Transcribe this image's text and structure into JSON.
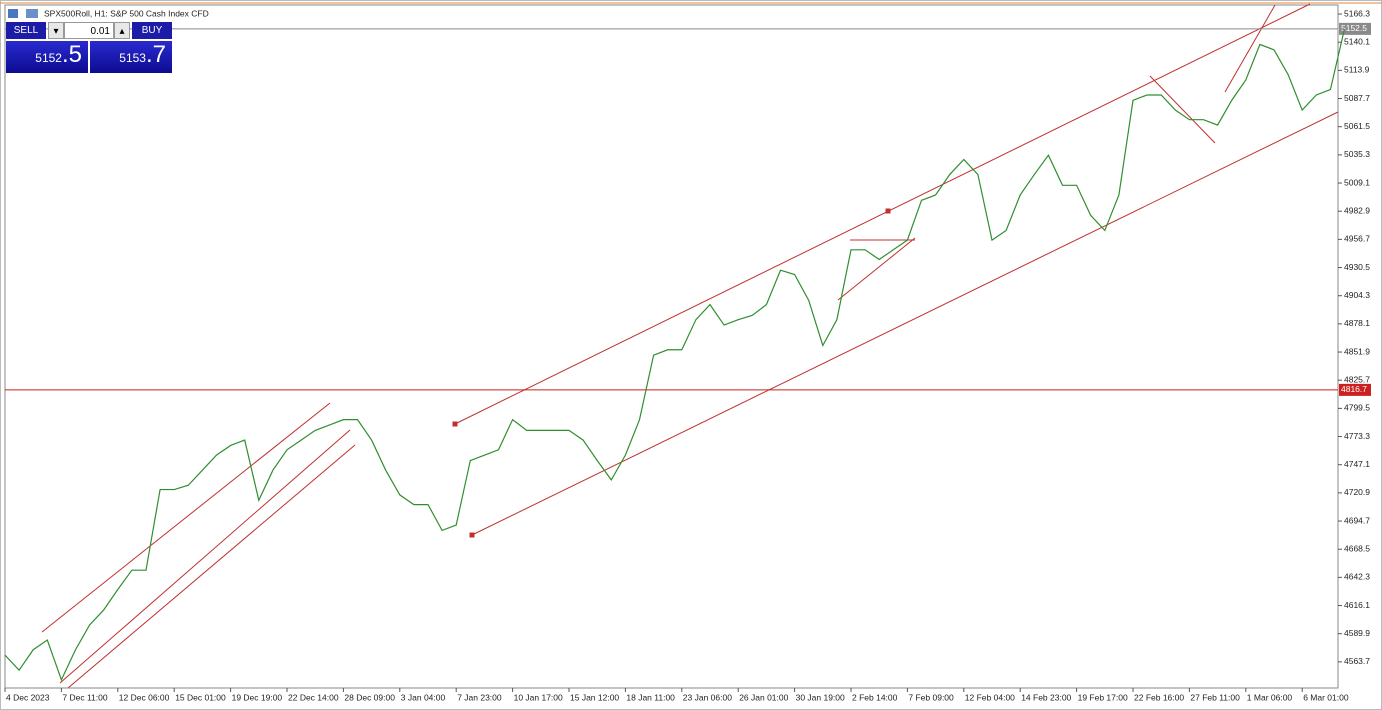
{
  "window_title": "SPX500Roll, H1:  S&P 500 Cash Index CFD",
  "trade_panel": {
    "sell_label": "SELL",
    "lot": "0.01",
    "buy_label": "BUY",
    "bid_main": "5152",
    "bid_frac": ".5",
    "ask_main": "5153",
    "ask_frac": ".7"
  },
  "chart_data": {
    "type": "line",
    "categories": [
      "4 Dec 2023",
      null,
      null,
      null,
      "7 Dec 11:00",
      null,
      null,
      null,
      "12 Dec 06:00",
      null,
      null,
      null,
      "15 Dec 01:00",
      null,
      null,
      null,
      "19 Dec 19:00",
      null,
      null,
      null,
      "22 Dec 14:00",
      null,
      null,
      null,
      "28 Dec 09:00",
      null,
      null,
      null,
      "3 Jan 04:00",
      null,
      null,
      null,
      "7 Jan 23:00",
      null,
      null,
      null,
      "10 Jan 17:00",
      null,
      null,
      null,
      "15 Jan 12:00",
      null,
      null,
      null,
      "18 Jan 11:00",
      null,
      null,
      null,
      "23 Jan 06:00",
      null,
      null,
      null,
      "26 Jan 01:00",
      null,
      null,
      null,
      "30 Jan 19:00",
      null,
      null,
      null,
      "2 Feb 14:00",
      null,
      null,
      null,
      "7 Feb 09:00",
      null,
      null,
      null,
      "12 Feb 04:00",
      null,
      null,
      null,
      "14 Feb 23:00",
      null,
      null,
      null,
      "19 Feb 17:00",
      null,
      null,
      null,
      "22 Feb 16:00",
      null,
      null,
      null,
      "27 Feb 11:00",
      null,
      null,
      null,
      "1 Mar 06:00",
      null,
      null,
      null,
      "6 Mar 01:00",
      null,
      null,
      null
    ],
    "series": [
      {
        "color": "#2f8f2f",
        "values": [
          4570,
          4556,
          4575,
          4584,
          4547,
          4575,
          4598,
          4612,
          4631,
          4649,
          4649,
          4724,
          4724,
          4728,
          4742,
          4756,
          4765,
          4770,
          4714,
          4742,
          4761,
          4770,
          4779,
          4784,
          4789,
          4789,
          4770,
          4742,
          4719,
          4710,
          4710,
          4686,
          4691,
          4751,
          4756,
          4761,
          4789,
          4779,
          4779,
          4779,
          4779,
          4770,
          4751,
          4733,
          4756,
          4789,
          4849,
          4854,
          4854,
          4882,
          4896,
          4877,
          4882,
          4886,
          4896,
          4928,
          4924,
          4900,
          4858,
          4882,
          4947,
          4947,
          4938,
          4947,
          4956,
          4993,
          4998,
          5017,
          5031,
          5017,
          4956,
          4965,
          4998,
          5017,
          5035,
          5007,
          5007,
          4979,
          4965,
          4998,
          5086,
          5091,
          5091,
          5077,
          5068,
          5068,
          5063,
          5086,
          5105,
          5138,
          5133,
          5110,
          5077,
          5091,
          5096,
          5152.5
        ]
      }
    ],
    "ylim": [
      4539.4,
      5174.7
    ],
    "yticks": [
      5166.3,
      5140.1,
      5113.9,
      5087.7,
      5061.5,
      5035.3,
      5009.1,
      4982.9,
      4956.7,
      4930.5,
      4904.3,
      4878.1,
      4851.9,
      4825.7,
      4799.5,
      4773.3,
      4747.1,
      4720.9,
      4694.7,
      4668.5,
      4642.3,
      4616.1,
      4589.9,
      4563.7
    ],
    "hlines": [
      {
        "value": 5152.5,
        "color": "#8a8a8a"
      },
      {
        "value": 4816.7,
        "color": "#cc1f1f"
      }
    ]
  }
}
